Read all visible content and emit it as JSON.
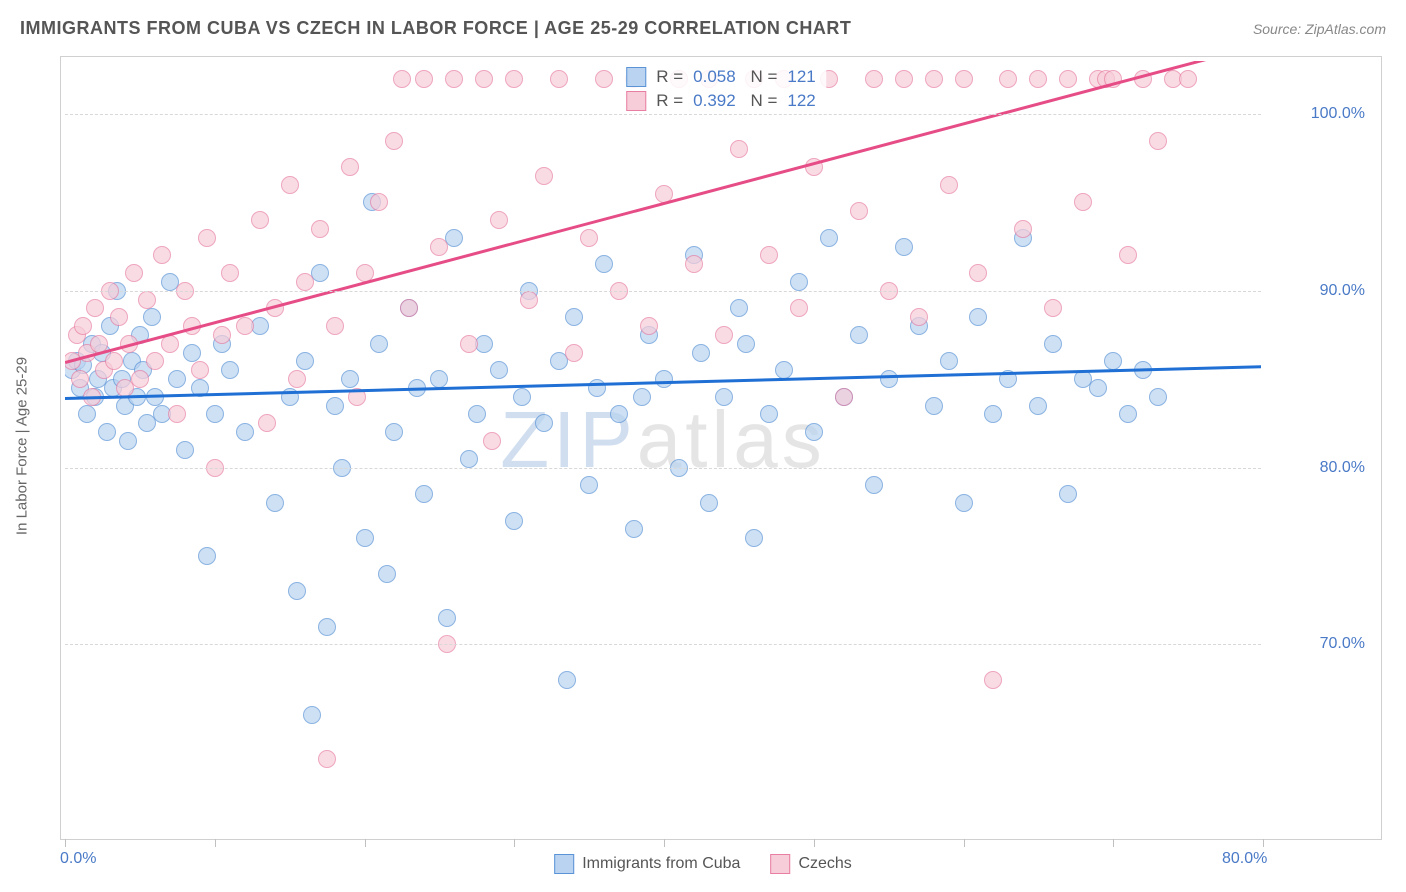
{
  "header": {
    "title": "IMMIGRANTS FROM CUBA VS CZECH IN LABOR FORCE | AGE 25-29 CORRELATION CHART",
    "source": "Source: ZipAtlas.com"
  },
  "chart": {
    "type": "scatter",
    "y_axis_label": "In Labor Force | Age 25-29",
    "xlim": [
      0,
      80
    ],
    "ylim": [
      60,
      103
    ],
    "x_ticks": [
      0,
      10,
      20,
      30,
      40,
      50,
      60,
      70,
      80
    ],
    "x_tick_labels_shown": {
      "0": "0.0%",
      "80": "80.0%"
    },
    "y_ticks": [
      70,
      80,
      90,
      100
    ],
    "y_tick_labels": [
      "70.0%",
      "80.0%",
      "90.0%",
      "100.0%"
    ],
    "grid_color": "#d8d8d8",
    "background_color": "#ffffff",
    "border_color": "#d0d0d0",
    "tick_label_color": "#4a7ac7",
    "axis_label_color": "#666666",
    "marker_radius": 9,
    "marker_opacity": 0.7,
    "watermark": "ZIPatlas",
    "series": [
      {
        "name": "Immigrants from Cuba",
        "fill_color": "#b9d3f0",
        "stroke_color": "#5a93d6",
        "trend": {
          "y_at_x0": 84.0,
          "y_at_xmax": 85.8,
          "line_color": "#1f6fd4",
          "line_width": 2.5
        },
        "stats": {
          "R": "0.058",
          "N": "121"
        },
        "points": [
          [
            0.5,
            85.5
          ],
          [
            0.8,
            86.0
          ],
          [
            1.0,
            84.5
          ],
          [
            1.2,
            85.8
          ],
          [
            1.5,
            83.0
          ],
          [
            1.8,
            87.0
          ],
          [
            2.0,
            84.0
          ],
          [
            2.2,
            85.0
          ],
          [
            2.5,
            86.5
          ],
          [
            2.8,
            82.0
          ],
          [
            3.0,
            88.0
          ],
          [
            3.2,
            84.5
          ],
          [
            3.5,
            90.0
          ],
          [
            3.8,
            85.0
          ],
          [
            4.0,
            83.5
          ],
          [
            4.2,
            81.5
          ],
          [
            4.5,
            86.0
          ],
          [
            4.8,
            84.0
          ],
          [
            5.0,
            87.5
          ],
          [
            5.2,
            85.5
          ],
          [
            5.5,
            82.5
          ],
          [
            5.8,
            88.5
          ],
          [
            6.0,
            84.0
          ],
          [
            6.5,
            83.0
          ],
          [
            7.0,
            90.5
          ],
          [
            7.5,
            85.0
          ],
          [
            8.0,
            81.0
          ],
          [
            8.5,
            86.5
          ],
          [
            9.0,
            84.5
          ],
          [
            9.5,
            75.0
          ],
          [
            10.0,
            83.0
          ],
          [
            10.5,
            87.0
          ],
          [
            11.0,
            85.5
          ],
          [
            12.0,
            82.0
          ],
          [
            13.0,
            88.0
          ],
          [
            14.0,
            78.0
          ],
          [
            15.0,
            84.0
          ],
          [
            15.5,
            73.0
          ],
          [
            16.0,
            86.0
          ],
          [
            16.5,
            66.0
          ],
          [
            17.0,
            91.0
          ],
          [
            17.5,
            71.0
          ],
          [
            18.0,
            83.5
          ],
          [
            18.5,
            80.0
          ],
          [
            19.0,
            85.0
          ],
          [
            20.0,
            76.0
          ],
          [
            20.5,
            95.0
          ],
          [
            21.0,
            87.0
          ],
          [
            21.5,
            74.0
          ],
          [
            22.0,
            82.0
          ],
          [
            23.0,
            89.0
          ],
          [
            23.5,
            84.5
          ],
          [
            24.0,
            78.5
          ],
          [
            25.0,
            85.0
          ],
          [
            25.5,
            71.5
          ],
          [
            26.0,
            93.0
          ],
          [
            27.0,
            80.5
          ],
          [
            27.5,
            83.0
          ],
          [
            28.0,
            87.0
          ],
          [
            29.0,
            85.5
          ],
          [
            30.0,
            77.0
          ],
          [
            30.5,
            84.0
          ],
          [
            31.0,
            90.0
          ],
          [
            32.0,
            82.5
          ],
          [
            33.0,
            86.0
          ],
          [
            33.5,
            68.0
          ],
          [
            34.0,
            88.5
          ],
          [
            35.0,
            79.0
          ],
          [
            35.5,
            84.5
          ],
          [
            36.0,
            91.5
          ],
          [
            37.0,
            83.0
          ],
          [
            38.0,
            76.5
          ],
          [
            38.5,
            84.0
          ],
          [
            39.0,
            87.5
          ],
          [
            40.0,
            85.0
          ],
          [
            41.0,
            80.0
          ],
          [
            42.0,
            92.0
          ],
          [
            42.5,
            86.5
          ],
          [
            43.0,
            78.0
          ],
          [
            44.0,
            84.0
          ],
          [
            45.0,
            89.0
          ],
          [
            45.5,
            87.0
          ],
          [
            46.0,
            76.0
          ],
          [
            47.0,
            83.0
          ],
          [
            48.0,
            85.5
          ],
          [
            49.0,
            90.5
          ],
          [
            50.0,
            82.0
          ],
          [
            51.0,
            93.0
          ],
          [
            52.0,
            84.0
          ],
          [
            53.0,
            87.5
          ],
          [
            54.0,
            79.0
          ],
          [
            55.0,
            85.0
          ],
          [
            56.0,
            92.5
          ],
          [
            57.0,
            88.0
          ],
          [
            58.0,
            83.5
          ],
          [
            59.0,
            86.0
          ],
          [
            60.0,
            78.0
          ],
          [
            61.0,
            88.5
          ],
          [
            62.0,
            83.0
          ],
          [
            63.0,
            85.0
          ],
          [
            64.0,
            93.0
          ],
          [
            65.0,
            83.5
          ],
          [
            66.0,
            87.0
          ],
          [
            67.0,
            78.5
          ],
          [
            68.0,
            85.0
          ],
          [
            69.0,
            84.5
          ],
          [
            70.0,
            86.0
          ],
          [
            71.0,
            83.0
          ],
          [
            72.0,
            85.5
          ],
          [
            73.0,
            84.0
          ]
        ]
      },
      {
        "name": "Czechs",
        "fill_color": "#f7cdd9",
        "stroke_color": "#e87fa2",
        "trend": {
          "y_at_x0": 86.0,
          "y_at_xmax": 104.0,
          "line_color": "#e64d87",
          "line_width": 2.5
        },
        "stats": {
          "R": "0.392",
          "N": "122"
        },
        "points": [
          [
            0.5,
            86.0
          ],
          [
            0.8,
            87.5
          ],
          [
            1.0,
            85.0
          ],
          [
            1.2,
            88.0
          ],
          [
            1.5,
            86.5
          ],
          [
            1.8,
            84.0
          ],
          [
            2.0,
            89.0
          ],
          [
            2.3,
            87.0
          ],
          [
            2.6,
            85.5
          ],
          [
            3.0,
            90.0
          ],
          [
            3.3,
            86.0
          ],
          [
            3.6,
            88.5
          ],
          [
            4.0,
            84.5
          ],
          [
            4.3,
            87.0
          ],
          [
            4.6,
            91.0
          ],
          [
            5.0,
            85.0
          ],
          [
            5.5,
            89.5
          ],
          [
            6.0,
            86.0
          ],
          [
            6.5,
            92.0
          ],
          [
            7.0,
            87.0
          ],
          [
            7.5,
            83.0
          ],
          [
            8.0,
            90.0
          ],
          [
            8.5,
            88.0
          ],
          [
            9.0,
            85.5
          ],
          [
            9.5,
            93.0
          ],
          [
            10.0,
            80.0
          ],
          [
            10.5,
            87.5
          ],
          [
            11.0,
            91.0
          ],
          [
            12.0,
            88.0
          ],
          [
            13.0,
            94.0
          ],
          [
            13.5,
            82.5
          ],
          [
            14.0,
            89.0
          ],
          [
            15.0,
            96.0
          ],
          [
            15.5,
            85.0
          ],
          [
            16.0,
            90.5
          ],
          [
            17.0,
            93.5
          ],
          [
            17.5,
            63.5
          ],
          [
            18.0,
            88.0
          ],
          [
            19.0,
            97.0
          ],
          [
            19.5,
            84.0
          ],
          [
            20.0,
            91.0
          ],
          [
            21.0,
            95.0
          ],
          [
            22.0,
            98.5
          ],
          [
            22.5,
            102.0
          ],
          [
            23.0,
            89.0
          ],
          [
            24.0,
            102.0
          ],
          [
            25.0,
            92.5
          ],
          [
            25.5,
            70.0
          ],
          [
            26.0,
            102.0
          ],
          [
            27.0,
            87.0
          ],
          [
            28.0,
            102.0
          ],
          [
            28.5,
            81.5
          ],
          [
            29.0,
            94.0
          ],
          [
            30.0,
            102.0
          ],
          [
            31.0,
            89.5
          ],
          [
            32.0,
            96.5
          ],
          [
            33.0,
            102.0
          ],
          [
            34.0,
            86.5
          ],
          [
            35.0,
            93.0
          ],
          [
            36.0,
            102.0
          ],
          [
            37.0,
            90.0
          ],
          [
            38.0,
            102.0
          ],
          [
            39.0,
            88.0
          ],
          [
            40.0,
            95.5
          ],
          [
            41.0,
            102.0
          ],
          [
            42.0,
            91.5
          ],
          [
            43.0,
            102.0
          ],
          [
            44.0,
            87.5
          ],
          [
            45.0,
            98.0
          ],
          [
            46.0,
            102.0
          ],
          [
            47.0,
            92.0
          ],
          [
            48.0,
            102.0
          ],
          [
            49.0,
            89.0
          ],
          [
            50.0,
            97.0
          ],
          [
            51.0,
            102.0
          ],
          [
            52.0,
            84.0
          ],
          [
            53.0,
            94.5
          ],
          [
            54.0,
            102.0
          ],
          [
            55.0,
            90.0
          ],
          [
            56.0,
            102.0
          ],
          [
            57.0,
            88.5
          ],
          [
            58.0,
            102.0
          ],
          [
            59.0,
            96.0
          ],
          [
            60.0,
            102.0
          ],
          [
            61.0,
            91.0
          ],
          [
            62.0,
            68.0
          ],
          [
            63.0,
            102.0
          ],
          [
            64.0,
            93.5
          ],
          [
            65.0,
            102.0
          ],
          [
            66.0,
            89.0
          ],
          [
            67.0,
            102.0
          ],
          [
            68.0,
            95.0
          ],
          [
            69.0,
            102.0
          ],
          [
            69.5,
            102.0
          ],
          [
            70.0,
            102.0
          ],
          [
            71.0,
            92.0
          ],
          [
            72.0,
            102.0
          ],
          [
            73.0,
            98.5
          ],
          [
            74.0,
            102.0
          ],
          [
            75.0,
            102.0
          ]
        ]
      }
    ]
  }
}
